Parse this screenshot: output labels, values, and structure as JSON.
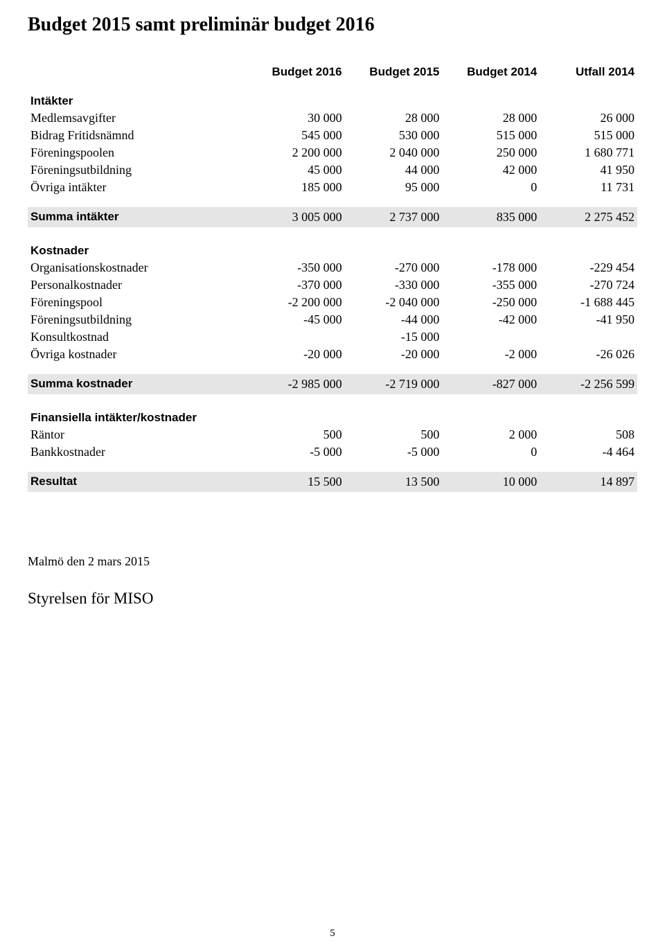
{
  "title": "Budget 2015 samt preliminär budget 2016",
  "columns": [
    "Budget 2016",
    "Budget 2015",
    "Budget 2014",
    "Utfall 2014"
  ],
  "sections": {
    "intakter": {
      "header": "Intäkter",
      "rows": [
        {
          "label": "Medlemsavgifter",
          "v": [
            "30 000",
            "28 000",
            "28 000",
            "26 000"
          ]
        },
        {
          "label": "Bidrag Fritidsnämnd",
          "v": [
            "545 000",
            "530 000",
            "515 000",
            "515 000"
          ]
        },
        {
          "label": "Föreningspoolen",
          "v": [
            "2 200 000",
            "2 040 000",
            "250 000",
            "1 680 771"
          ]
        },
        {
          "label": "Föreningsutbildning",
          "v": [
            "45 000",
            "44 000",
            "42 000",
            "41 950"
          ]
        },
        {
          "label": "Övriga intäkter",
          "v": [
            "185 000",
            "95 000",
            "0",
            "11 731"
          ]
        }
      ],
      "sum": {
        "label": "Summa intäkter",
        "v": [
          "3 005 000",
          "2 737 000",
          "835 000",
          "2 275 452"
        ]
      }
    },
    "kostnader": {
      "header": "Kostnader",
      "rows": [
        {
          "label": "Organisationskostnader",
          "v": [
            "-350 000",
            "-270 000",
            "-178 000",
            "-229 454"
          ]
        },
        {
          "label": "Personalkostnader",
          "v": [
            "-370 000",
            "-330 000",
            "-355 000",
            "-270 724"
          ]
        },
        {
          "label": "Föreningspool",
          "v": [
            "-2 200 000",
            "-2 040 000",
            "-250 000",
            "-1 688 445"
          ]
        },
        {
          "label": "Föreningsutbildning",
          "v": [
            "-45 000",
            "-44 000",
            "-42 000",
            "-41 950"
          ]
        },
        {
          "label": "Konsultkostnad",
          "v": [
            "",
            "-15 000",
            "",
            ""
          ]
        },
        {
          "label": "Övriga kostnader",
          "v": [
            "-20 000",
            "-20 000",
            "-2 000",
            "-26 026"
          ]
        }
      ],
      "sum": {
        "label": "Summa kostnader",
        "v": [
          "-2 985 000",
          "-2 719 000",
          "-827 000",
          "-2 256 599"
        ]
      }
    },
    "finansiella": {
      "header": "Finansiella intäkter/kostnader",
      "rows": [
        {
          "label": "Räntor",
          "v": [
            "500",
            "500",
            "2 000",
            "508"
          ]
        },
        {
          "label": "Bankkostnader",
          "v": [
            "-5 000",
            "-5 000",
            "0",
            "-4 464"
          ]
        }
      ]
    },
    "resultat": {
      "label": "Resultat",
      "v": [
        "15 500",
        "13 500",
        "10 000",
        "14 897"
      ]
    }
  },
  "footer": {
    "date": "Malmö den 2 mars 2015",
    "sign": "Styrelsen för MISO",
    "page_num": "5"
  }
}
